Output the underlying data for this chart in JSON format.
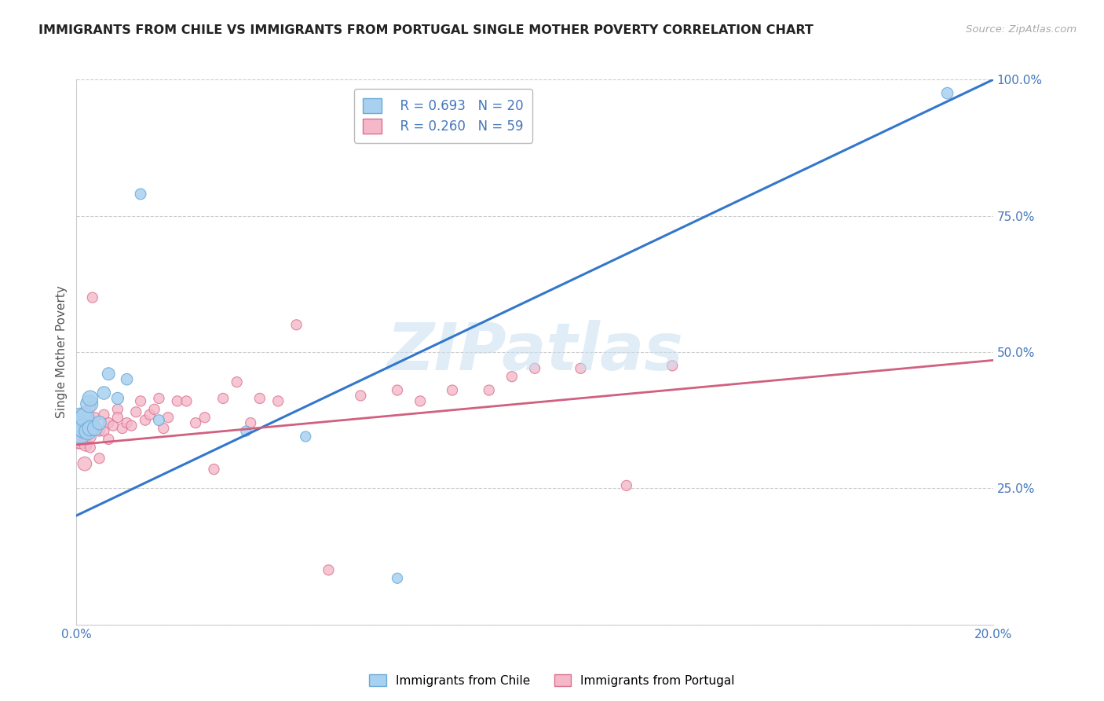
{
  "title": "IMMIGRANTS FROM CHILE VS IMMIGRANTS FROM PORTUGAL SINGLE MOTHER POVERTY CORRELATION CHART",
  "source": "Source: ZipAtlas.com",
  "ylabel": "Single Mother Poverty",
  "xlim": [
    0.0,
    0.2
  ],
  "ylim": [
    0.0,
    1.0
  ],
  "ytick_positions": [
    0.0,
    0.25,
    0.5,
    0.75,
    1.0
  ],
  "ytick_labels": [
    "",
    "25.0%",
    "50.0%",
    "75.0%",
    "100.0%"
  ],
  "xtick_positions": [
    0.0,
    0.05,
    0.1,
    0.15,
    0.2
  ],
  "xtick_labels": [
    "0.0%",
    "",
    "",
    "",
    "20.0%"
  ],
  "chile_color": "#a8d0f0",
  "chile_edge": "#6aaad4",
  "chile_line_color": "#3377cc",
  "chile_R": 0.693,
  "chile_N": 20,
  "chile_line_x0": 0.0,
  "chile_line_y0": 0.2,
  "chile_line_x1": 0.2,
  "chile_line_y1": 1.0,
  "portugal_color": "#f5b8c8",
  "portugal_edge": "#d87090",
  "portugal_line_color": "#d06080",
  "portugal_R": 0.26,
  "portugal_N": 59,
  "portugal_line_x0": 0.0,
  "portugal_line_y0": 0.33,
  "portugal_line_x1": 0.2,
  "portugal_line_y1": 0.485,
  "legend_label_chile": "Immigrants from Chile",
  "legend_label_portugal": "Immigrants from Portugal",
  "watermark": "ZIPatlas",
  "background_color": "#ffffff",
  "grid_color": "#cccccc",
  "title_color": "#222222",
  "label_color": "#555555",
  "tick_color": "#4477bb",
  "chile_pts_x": [
    0.0008,
    0.0009,
    0.0015,
    0.0018,
    0.0025,
    0.0028,
    0.003,
    0.003,
    0.004,
    0.005,
    0.006,
    0.007,
    0.009,
    0.011,
    0.014,
    0.018,
    0.037,
    0.05,
    0.07,
    0.19
  ],
  "chile_pts_y": [
    0.355,
    0.375,
    0.36,
    0.38,
    0.355,
    0.405,
    0.36,
    0.415,
    0.36,
    0.37,
    0.425,
    0.46,
    0.415,
    0.45,
    0.79,
    0.375,
    0.355,
    0.345,
    0.085,
    0.975
  ],
  "chile_pts_s": [
    500,
    500,
    300,
    300,
    250,
    250,
    200,
    200,
    180,
    160,
    140,
    130,
    120,
    110,
    100,
    100,
    90,
    90,
    90,
    110
  ],
  "portugal_pts_x": [
    0.0005,
    0.0007,
    0.001,
    0.0013,
    0.0015,
    0.0018,
    0.002,
    0.002,
    0.002,
    0.0025,
    0.003,
    0.003,
    0.003,
    0.003,
    0.0035,
    0.004,
    0.004,
    0.005,
    0.005,
    0.006,
    0.006,
    0.007,
    0.007,
    0.008,
    0.009,
    0.009,
    0.01,
    0.011,
    0.012,
    0.013,
    0.014,
    0.015,
    0.016,
    0.017,
    0.018,
    0.019,
    0.02,
    0.022,
    0.024,
    0.026,
    0.028,
    0.03,
    0.032,
    0.035,
    0.038,
    0.04,
    0.044,
    0.048,
    0.055,
    0.062,
    0.07,
    0.075,
    0.082,
    0.09,
    0.095,
    0.1,
    0.11,
    0.12,
    0.13
  ],
  "portugal_pts_y": [
    0.345,
    0.35,
    0.34,
    0.38,
    0.355,
    0.295,
    0.33,
    0.35,
    0.39,
    0.36,
    0.345,
    0.36,
    0.325,
    0.4,
    0.6,
    0.36,
    0.38,
    0.355,
    0.305,
    0.355,
    0.385,
    0.34,
    0.37,
    0.365,
    0.395,
    0.38,
    0.36,
    0.37,
    0.365,
    0.39,
    0.41,
    0.375,
    0.385,
    0.395,
    0.415,
    0.36,
    0.38,
    0.41,
    0.41,
    0.37,
    0.38,
    0.285,
    0.415,
    0.445,
    0.37,
    0.415,
    0.41,
    0.55,
    0.1,
    0.42,
    0.43,
    0.41,
    0.43,
    0.43,
    0.455,
    0.47,
    0.47,
    0.255,
    0.475
  ],
  "portugal_pts_s": [
    500,
    400,
    300,
    250,
    200,
    160,
    140,
    130,
    120,
    110,
    120,
    100,
    90,
    90,
    90,
    90,
    90,
    90,
    90,
    90,
    90,
    90,
    90,
    90,
    90,
    90,
    90,
    90,
    90,
    90,
    90,
    90,
    90,
    90,
    90,
    90,
    90,
    90,
    90,
    90,
    90,
    90,
    90,
    90,
    90,
    90,
    90,
    90,
    90,
    90,
    90,
    90,
    90,
    90,
    90,
    90,
    90,
    90,
    90
  ]
}
